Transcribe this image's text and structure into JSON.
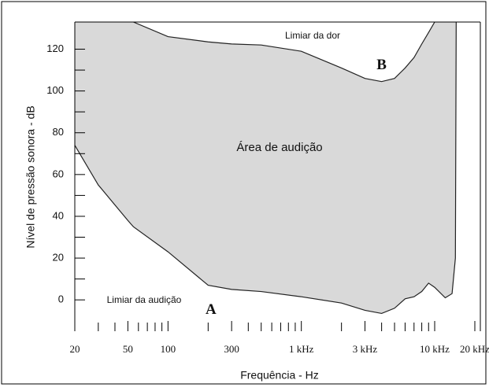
{
  "chart_data": {
    "type": "area",
    "title": "Área de audição",
    "xlabel": "Frequência - Hz",
    "ylabel": "Nível de pressão sonora - dB",
    "log_x": true,
    "xlim": [
      20,
      22000
    ],
    "ylim": [
      -15,
      133
    ],
    "xticks": [
      20,
      50,
      100,
      300,
      {
        "value": 1000,
        "label": "1 kHz"
      },
      {
        "value": 3000,
        "label": "3 kHz"
      },
      {
        "value": 10000,
        "label": "10 kHz"
      },
      {
        "value": 20000,
        "label": "20 kHz"
      }
    ],
    "xminorticks": [
      30,
      40,
      60,
      70,
      80,
      90,
      200,
      400,
      500,
      600,
      700,
      800,
      900,
      2000,
      4000,
      5000,
      6000,
      7000,
      8000,
      9000
    ],
    "yticks": [
      0,
      20,
      40,
      60,
      80,
      100,
      120
    ],
    "yminorticks": [
      10,
      30,
      50,
      70,
      90,
      110
    ],
    "fill_color": "#d9d9d9",
    "x": [
      20,
      30,
      50,
      55,
      100,
      200,
      300,
      500,
      1000,
      2000,
      3000,
      4000,
      5000,
      6000,
      7000,
      8000,
      9000,
      10000,
      12000,
      13500,
      14300,
      14500
    ],
    "series": [
      {
        "name": "Limiar da audição",
        "color": "#222222",
        "values": [
          74,
          55,
          38,
          35,
          23,
          7,
          5,
          4,
          1.5,
          -1.5,
          -5,
          -6.5,
          -4,
          0.5,
          1.5,
          4,
          8,
          6,
          1,
          3,
          20,
          133
        ]
      },
      {
        "name": "Limiar da dor",
        "color": "#222222",
        "values": [
          null,
          null,
          null,
          133,
          126,
          123.5,
          122.5,
          122,
          119,
          111,
          106,
          104.5,
          106,
          111,
          116,
          122.5,
          128,
          133,
          null,
          null,
          null,
          null
        ]
      }
    ],
    "annotations": [
      {
        "text": "A",
        "x": 210,
        "y": -5
      },
      {
        "text": "B",
        "x": 4000,
        "y": 112
      }
    ]
  }
}
